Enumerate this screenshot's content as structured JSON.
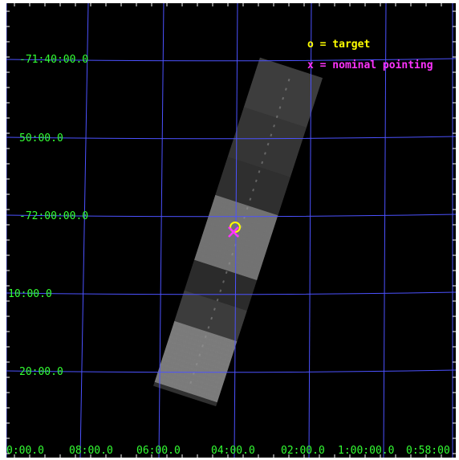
{
  "colors": {
    "grid": "#4c52ff",
    "coord_labels": "#33ff33",
    "target_marker": "#ffff00",
    "pointing_marker": "#ff33ff",
    "background": "#000000"
  },
  "legend": {
    "target": "o = target",
    "pointing": "x = nominal pointing"
  },
  "dec_labels": [
    "-71:40:00.0",
    "50:00.0",
    "-72:00:00.0",
    "10:00.0",
    "20:00.0"
  ],
  "ra_labels": [
    "0:00.0",
    "08:00.0",
    "06:00.0",
    "04:00.0",
    "02:00.0",
    "1:00:00.0",
    "0:58:00"
  ]
}
